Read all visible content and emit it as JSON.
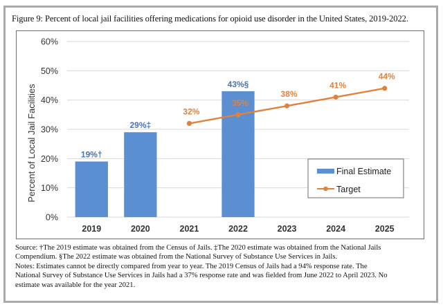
{
  "figure_title": "Figure 9: Percent of local jail facilities offering medications for opioid use disorder in the United States, 2019-2022.",
  "colors": {
    "bar": "#5b8fd1",
    "bar_label": "#4a72b8",
    "line": "#e0823d",
    "grid": "#d9d9d9",
    "axis_text": "#333333"
  },
  "chart_data": {
    "type": "bar",
    "title": "",
    "xlabel": "",
    "ylabel": "Percent of Local Jail Facilities",
    "categories": [
      "2019",
      "2020",
      "2021",
      "2022",
      "2023",
      "2024",
      "2025"
    ],
    "ylim": [
      0,
      60
    ],
    "yticks": [
      0,
      10,
      20,
      30,
      40,
      50,
      60
    ],
    "ytick_labels": [
      "0%",
      "10%",
      "20%",
      "30%",
      "40%",
      "50%",
      "60%"
    ],
    "grid": true,
    "legend_position": "right-middle",
    "series": [
      {
        "name": "Final Estimate",
        "type": "bar",
        "values": [
          19,
          29,
          null,
          43,
          null,
          null,
          null
        ],
        "labels": [
          "19%†",
          "29%‡",
          null,
          "43%§",
          null,
          null,
          null
        ]
      },
      {
        "name": "Target",
        "type": "line",
        "values": [
          null,
          null,
          32,
          35,
          38,
          41,
          44
        ],
        "labels": [
          null,
          null,
          "32%",
          "35%",
          "38%",
          "41%",
          "44%"
        ]
      }
    ]
  },
  "notes": [
    "Source: †The 2019 estimate was obtained from the Census of Jails.  ‡The 2020 estimate was obtained from the National Jails",
    "Compendium.  §The 2022 estimate was obtained from the National Survey of Substance Use Services in Jails.",
    "Notes: Estimates cannot be directly compared from year to year.  The 2019 Census of Jails had a 94% response rate.  The",
    "National Survey of Substance Use Services in Jails had a 37% response rate and was fielded from June 2022 to April 2023.  No",
    "estimate was available for the year 2021."
  ]
}
